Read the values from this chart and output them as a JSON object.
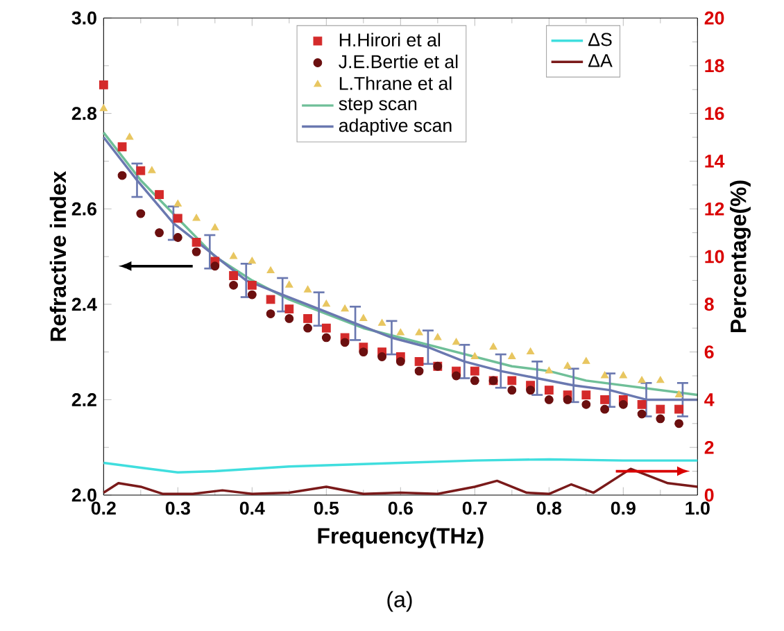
{
  "chart_data": {
    "type": "scatter",
    "xlabel": "Frequency(THz)",
    "ylabel": "Refractive index",
    "y2label": "Percentage(%)",
    "xlim": [
      0.2,
      1.0
    ],
    "xticks": [
      0.2,
      0.3,
      0.4,
      0.5,
      0.6,
      0.7,
      0.8,
      0.9,
      {
        "value": 1.0,
        "label": "1.0"
      }
    ],
    "ylim": [
      2.0,
      3.0
    ],
    "yticks": [
      {
        "value": 2.0,
        "label": "2.0"
      },
      2.2,
      2.4,
      2.6,
      2.8,
      {
        "value": 3.0,
        "label": "3.0"
      }
    ],
    "y2lim": [
      0,
      20
    ],
    "y2ticks": [
      0,
      2,
      4,
      6,
      8,
      10,
      12,
      14,
      16,
      18,
      20
    ],
    "legend": "top",
    "annotations": [
      "(a)"
    ],
    "series": [
      {
        "name": "H.Hirori et al",
        "marker": "square",
        "color": "#d42a2a",
        "x": [
          0.2,
          0.225,
          0.25,
          0.275,
          0.3,
          0.325,
          0.35,
          0.375,
          0.4,
          0.425,
          0.45,
          0.475,
          0.5,
          0.525,
          0.55,
          0.575,
          0.6,
          0.625,
          0.65,
          0.675,
          0.7,
          0.725,
          0.75,
          0.775,
          0.8,
          0.825,
          0.85,
          0.875,
          0.9,
          0.925,
          0.95,
          0.975
        ],
        "values": [
          2.86,
          2.73,
          2.68,
          2.63,
          2.58,
          2.53,
          2.49,
          2.46,
          2.44,
          2.41,
          2.39,
          2.37,
          2.35,
          2.33,
          2.31,
          2.3,
          2.29,
          2.28,
          2.27,
          2.26,
          2.26,
          2.24,
          2.24,
          2.23,
          2.22,
          2.21,
          2.21,
          2.2,
          2.2,
          2.19,
          2.18,
          2.18
        ]
      },
      {
        "name": "J.E.Bertie et al",
        "marker": "circle",
        "color": "#6b0f0f",
        "x": [
          0.225,
          0.25,
          0.275,
          0.3,
          0.325,
          0.35,
          0.375,
          0.4,
          0.425,
          0.45,
          0.475,
          0.5,
          0.525,
          0.55,
          0.575,
          0.6,
          0.625,
          0.65,
          0.675,
          0.7,
          0.725,
          0.75,
          0.775,
          0.8,
          0.825,
          0.85,
          0.875,
          0.9,
          0.925,
          0.95,
          0.975
        ],
        "values": [
          2.67,
          2.59,
          2.55,
          2.54,
          2.51,
          2.48,
          2.44,
          2.42,
          2.38,
          2.37,
          2.35,
          2.33,
          2.32,
          2.3,
          2.29,
          2.28,
          2.26,
          2.27,
          2.25,
          2.24,
          2.24,
          2.22,
          2.22,
          2.2,
          2.2,
          2.19,
          2.18,
          2.19,
          2.17,
          2.16,
          2.15
        ]
      },
      {
        "name": "L.Thrane et al",
        "marker": "triangle",
        "color": "#e8c660",
        "x": [
          0.2,
          0.235,
          0.265,
          0.3,
          0.325,
          0.35,
          0.375,
          0.4,
          0.425,
          0.45,
          0.475,
          0.5,
          0.525,
          0.55,
          0.575,
          0.6,
          0.625,
          0.65,
          0.675,
          0.7,
          0.725,
          0.75,
          0.775,
          0.8,
          0.825,
          0.85,
          0.875,
          0.9,
          0.925,
          0.95,
          0.975
        ],
        "values": [
          2.81,
          2.75,
          2.68,
          2.61,
          2.58,
          2.56,
          2.5,
          2.49,
          2.47,
          2.44,
          2.43,
          2.4,
          2.39,
          2.37,
          2.36,
          2.34,
          2.34,
          2.33,
          2.32,
          2.29,
          2.31,
          2.29,
          2.3,
          2.26,
          2.27,
          2.28,
          2.25,
          2.25,
          2.24,
          2.24,
          2.21
        ]
      },
      {
        "name": "step scan",
        "type": "line",
        "color": "#6fbf98",
        "x": [
          0.2,
          0.25,
          0.3,
          0.35,
          0.4,
          0.45,
          0.5,
          0.55,
          0.6,
          0.65,
          0.7,
          0.75,
          0.8,
          0.85,
          0.9,
          0.95,
          1.0
        ],
        "values": [
          2.76,
          2.66,
          2.58,
          2.5,
          2.45,
          2.41,
          2.38,
          2.35,
          2.33,
          2.31,
          2.29,
          2.27,
          2.26,
          2.24,
          2.23,
          2.22,
          2.21
        ]
      },
      {
        "name": "adaptive scan",
        "type": "line",
        "color": "#6a78b0",
        "x": [
          0.2,
          0.245,
          0.294,
          0.343,
          0.392,
          0.441,
          0.49,
          0.539,
          0.588,
          0.637,
          0.686,
          0.735,
          0.784,
          0.833,
          0.882,
          0.931,
          0.98,
          1.0
        ],
        "values": [
          2.75,
          2.66,
          2.57,
          2.51,
          2.45,
          2.42,
          2.39,
          2.36,
          2.33,
          2.31,
          2.28,
          2.26,
          2.245,
          2.23,
          2.22,
          2.2,
          2.2,
          2.2
        ],
        "errors": [
          null,
          0.035,
          0.035,
          0.035,
          0.035,
          0.035,
          0.035,
          0.035,
          0.035,
          0.035,
          0.035,
          0.035,
          0.035,
          0.035,
          0.035,
          0.035,
          0.035,
          null
        ]
      },
      {
        "name": "ΔS",
        "type": "line",
        "axis": "y2",
        "color": "#40dede",
        "x": [
          0.2,
          0.25,
          0.3,
          0.35,
          0.4,
          0.45,
          0.5,
          0.55,
          0.6,
          0.7,
          0.8,
          0.9,
          1.0
        ],
        "values": [
          1.35,
          1.15,
          0.95,
          1.0,
          1.1,
          1.2,
          1.25,
          1.3,
          1.35,
          1.45,
          1.5,
          1.45,
          1.45
        ]
      },
      {
        "name": "ΔA",
        "type": "line",
        "axis": "y2",
        "color": "#7a1a1a",
        "x": [
          0.2,
          0.22,
          0.25,
          0.28,
          0.32,
          0.36,
          0.4,
          0.45,
          0.5,
          0.55,
          0.6,
          0.65,
          0.7,
          0.73,
          0.77,
          0.8,
          0.83,
          0.86,
          0.91,
          0.96,
          1.0
        ],
        "values": [
          0.1,
          0.5,
          0.35,
          0.05,
          0.05,
          0.2,
          0.05,
          0.1,
          0.35,
          0.05,
          0.1,
          0.05,
          0.35,
          0.6,
          0.1,
          0.05,
          0.45,
          0.1,
          1.1,
          0.5,
          0.35
        ]
      }
    ]
  }
}
